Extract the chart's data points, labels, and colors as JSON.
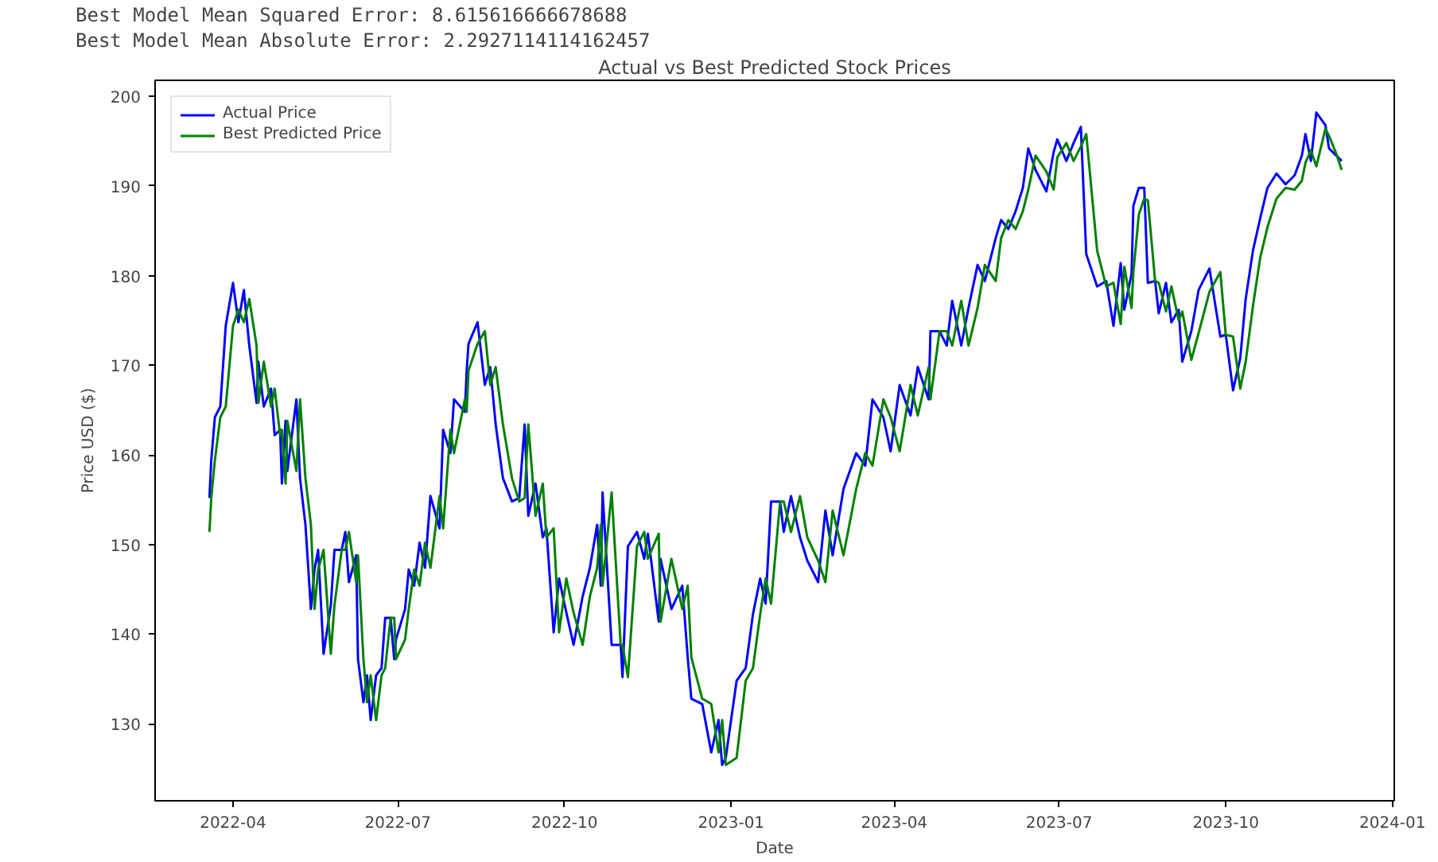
{
  "chart_data": {
    "type": "line",
    "title": "Actual vs Best Predicted Stock Prices",
    "xlabel": "Date",
    "ylabel": "Price USD ($)",
    "annotations": [
      "Best Model Mean Squared Error: 8.615616666678688",
      "Best Model Mean Absolute Error: 2.2927114114162457"
    ],
    "x": [
      "2022-03-19",
      "2022-03-20",
      "2022-03-22",
      "2022-03-25",
      "2022-03-28",
      "2022-04-01",
      "2022-04-04",
      "2022-04-07",
      "2022-04-10",
      "2022-04-14",
      "2022-04-15",
      "2022-04-18",
      "2022-04-22",
      "2022-04-24",
      "2022-04-27",
      "2022-04-28",
      "2022-04-30",
      "2022-05-01",
      "2022-05-06",
      "2022-05-08",
      "2022-05-11",
      "2022-05-14",
      "2022-05-16",
      "2022-05-18",
      "2022-05-21",
      "2022-05-25",
      "2022-05-27",
      "2022-05-31",
      "2022-06-02",
      "2022-06-04",
      "2022-06-08",
      "2022-06-09",
      "2022-06-12",
      "2022-06-14",
      "2022-06-16",
      "2022-06-19",
      "2022-06-22",
      "2022-06-24",
      "2022-06-27",
      "2022-06-29",
      "2022-06-30",
      "2022-07-05",
      "2022-07-07",
      "2022-07-10",
      "2022-07-13",
      "2022-07-16",
      "2022-07-19",
      "2022-07-24",
      "2022-07-26",
      "2022-07-30",
      "2022-08-01",
      "2022-08-07",
      "2022-08-08",
      "2022-08-09",
      "2022-08-14",
      "2022-08-18",
      "2022-08-21",
      "2022-08-24",
      "2022-08-28",
      "2022-09-02",
      "2022-09-06",
      "2022-09-09",
      "2022-09-11",
      "2022-09-15",
      "2022-09-19",
      "2022-09-21",
      "2022-09-25",
      "2022-09-28",
      "2022-10-02",
      "2022-10-06",
      "2022-10-11",
      "2022-10-15",
      "2022-10-19",
      "2022-10-21",
      "2022-10-22",
      "2022-10-27",
      "2022-11-01",
      "2022-11-02",
      "2022-11-05",
      "2022-11-10",
      "2022-11-14",
      "2022-11-16",
      "2022-11-22",
      "2022-11-23",
      "2022-11-29",
      "2022-12-05",
      "2022-12-08",
      "2022-12-10",
      "2022-12-16",
      "2022-12-21",
      "2022-12-25",
      "2022-12-27",
      "2022-12-29",
      "2023-01-04",
      "2023-01-09",
      "2023-01-13",
      "2023-01-17",
      "2023-01-20",
      "2023-01-23",
      "2023-01-28",
      "2023-01-30",
      "2023-02-03",
      "2023-02-08",
      "2023-02-12",
      "2023-02-18",
      "2023-02-22",
      "2023-02-26",
      "2023-03-04",
      "2023-03-11",
      "2023-03-16",
      "2023-03-20",
      "2023-03-26",
      "2023-03-30",
      "2023-04-04",
      "2023-04-10",
      "2023-04-14",
      "2023-04-20",
      "2023-04-21",
      "2023-04-26",
      "2023-04-30",
      "2023-05-03",
      "2023-05-08",
      "2023-05-12",
      "2023-05-17",
      "2023-05-21",
      "2023-05-27",
      "2023-05-30",
      "2023-06-03",
      "2023-06-07",
      "2023-06-11",
      "2023-06-14",
      "2023-06-18",
      "2023-06-24",
      "2023-06-28",
      "2023-06-30",
      "2023-07-05",
      "2023-07-09",
      "2023-07-13",
      "2023-07-16",
      "2023-07-22",
      "2023-07-27",
      "2023-07-31",
      "2023-08-04",
      "2023-08-06",
      "2023-08-10",
      "2023-08-11",
      "2023-08-14",
      "2023-08-17",
      "2023-08-19",
      "2023-08-23",
      "2023-08-25",
      "2023-08-29",
      "2023-09-01",
      "2023-09-05",
      "2023-09-07",
      "2023-09-12",
      "2023-09-16",
      "2023-09-22",
      "2023-09-28",
      "2023-10-01",
      "2023-10-05",
      "2023-10-09",
      "2023-10-12",
      "2023-10-16",
      "2023-10-20",
      "2023-10-24",
      "2023-10-29",
      "2023-11-03",
      "2023-11-08",
      "2023-11-12",
      "2023-11-14",
      "2023-11-17",
      "2023-11-20",
      "2023-11-25",
      "2023-11-27",
      "2023-12-01",
      "2023-12-04"
    ],
    "series": [
      {
        "name": "Actual Price",
        "color": "#0000ff",
        "values": [
          155.2,
          159.4,
          164.2,
          165.4,
          174.4,
          179.2,
          174.8,
          178.4,
          172.2,
          165.8,
          170.4,
          165.4,
          167.4,
          162.2,
          162.8,
          156.8,
          163.8,
          158.2,
          166.2,
          157.4,
          152.2,
          142.8,
          147.2,
          149.4,
          137.8,
          143.2,
          149.4,
          149.4,
          151.4,
          145.8,
          148.8,
          137.2,
          132.4,
          135.4,
          130.4,
          135.4,
          136.2,
          141.8,
          141.8,
          137.2,
          139.4,
          142.8,
          147.2,
          145.4,
          150.2,
          147.4,
          155.4,
          151.8,
          162.8,
          160.2,
          166.2,
          164.8,
          169.4,
          172.4,
          174.8,
          167.8,
          169.8,
          163.4,
          157.4,
          154.8,
          155.2,
          163.4,
          153.2,
          156.8,
          150.8,
          151.8,
          140.2,
          146.2,
          142.4,
          138.8,
          144.2,
          147.4,
          152.2,
          145.4,
          155.8,
          138.8,
          138.8,
          135.2,
          149.8,
          151.4,
          148.4,
          151.2,
          141.4,
          148.4,
          142.8,
          145.4,
          137.4,
          132.8,
          132.2,
          126.8,
          130.4,
          125.4,
          126.2,
          134.8,
          136.2,
          142.2,
          146.2,
          143.4,
          154.8,
          154.8,
          151.4,
          155.4,
          150.8,
          148.2,
          145.8,
          153.8,
          148.8,
          156.2,
          160.2,
          158.8,
          166.2,
          164.2,
          160.4,
          167.8,
          164.4,
          169.8,
          166.2,
          173.8,
          173.8,
          172.2,
          177.2,
          172.2,
          176.4,
          181.2,
          179.4,
          184.2,
          186.2,
          185.2,
          187.2,
          189.8,
          194.2,
          191.8,
          189.4,
          193.8,
          195.2,
          192.8,
          194.8,
          196.6,
          182.4,
          178.8,
          179.4,
          174.4,
          181.4,
          176.2,
          180.2,
          187.8,
          189.8,
          189.8,
          179.2,
          179.4,
          175.8,
          179.2,
          174.8,
          176.2,
          170.4,
          173.8,
          178.4,
          180.8,
          173.2,
          173.4,
          167.2,
          170.8,
          177.4,
          182.8,
          186.4,
          189.8,
          191.4,
          190.2,
          191.2,
          193.4,
          195.8,
          192.8,
          198.2,
          196.8,
          194.2,
          193.4,
          192.8
        ]
      },
      {
        "name": "Best Predicted Price",
        "color": "#008000",
        "values": [
          151.4,
          155.2,
          159.4,
          164.2,
          165.4,
          174.4,
          176.2,
          174.8,
          177.4,
          172.2,
          165.8,
          170.4,
          165.4,
          167.4,
          162.2,
          162.8,
          156.8,
          163.8,
          158.2,
          166.2,
          157.4,
          152.2,
          142.8,
          147.2,
          149.4,
          137.8,
          143.2,
          149.4,
          149.4,
          151.4,
          145.8,
          148.8,
          137.2,
          132.4,
          135.4,
          130.4,
          135.4,
          136.2,
          141.8,
          141.8,
          137.2,
          139.4,
          142.8,
          147.2,
          145.4,
          150.2,
          147.4,
          155.4,
          151.8,
          162.8,
          160.2,
          166.2,
          164.8,
          169.4,
          172.4,
          173.8,
          167.8,
          169.8,
          163.4,
          157.4,
          154.8,
          155.2,
          163.4,
          153.2,
          156.8,
          150.8,
          151.8,
          140.2,
          146.2,
          142.4,
          138.8,
          144.2,
          147.4,
          152.2,
          145.4,
          155.8,
          138.8,
          138.8,
          135.2,
          149.8,
          151.4,
          148.4,
          151.2,
          141.4,
          148.4,
          142.8,
          145.4,
          137.4,
          132.8,
          132.2,
          126.8,
          130.4,
          125.4,
          126.2,
          134.8,
          136.2,
          142.2,
          146.2,
          143.4,
          154.8,
          154.8,
          151.4,
          155.4,
          150.8,
          148.2,
          145.8,
          153.8,
          148.8,
          156.2,
          160.2,
          158.8,
          166.2,
          164.2,
          160.4,
          167.8,
          164.4,
          169.8,
          166.2,
          173.8,
          173.8,
          172.2,
          177.2,
          172.2,
          176.4,
          181.2,
          179.4,
          184.2,
          186.2,
          185.2,
          187.2,
          189.6,
          193.4,
          191.6,
          189.6,
          193.2,
          194.8,
          192.8,
          194.4,
          195.8,
          182.8,
          178.8,
          179.2,
          174.6,
          181.0,
          176.4,
          180.4,
          186.8,
          188.6,
          188.4,
          179.4,
          179.2,
          176.0,
          178.8,
          175.0,
          176.0,
          170.6,
          173.6,
          178.2,
          180.4,
          173.4,
          173.2,
          167.4,
          170.4,
          176.6,
          182.0,
          185.4,
          188.6,
          189.8,
          189.6,
          190.6,
          192.6,
          194.0,
          192.2,
          196.4,
          195.6,
          193.6,
          191.8
        ]
      }
    ],
    "xlim": [
      "2022-02-17",
      "2024-01-02"
    ],
    "ylim": [
      121.4,
      201.8
    ],
    "xticks": [
      "2022-04",
      "2022-07",
      "2022-10",
      "2023-01",
      "2023-04",
      "2023-07",
      "2023-10",
      "2024-01"
    ],
    "yticks": [
      130,
      140,
      150,
      160,
      170,
      180,
      190,
      200
    ],
    "legend": "top left",
    "grid": false,
    "line_style": "solid",
    "marker": "none"
  }
}
